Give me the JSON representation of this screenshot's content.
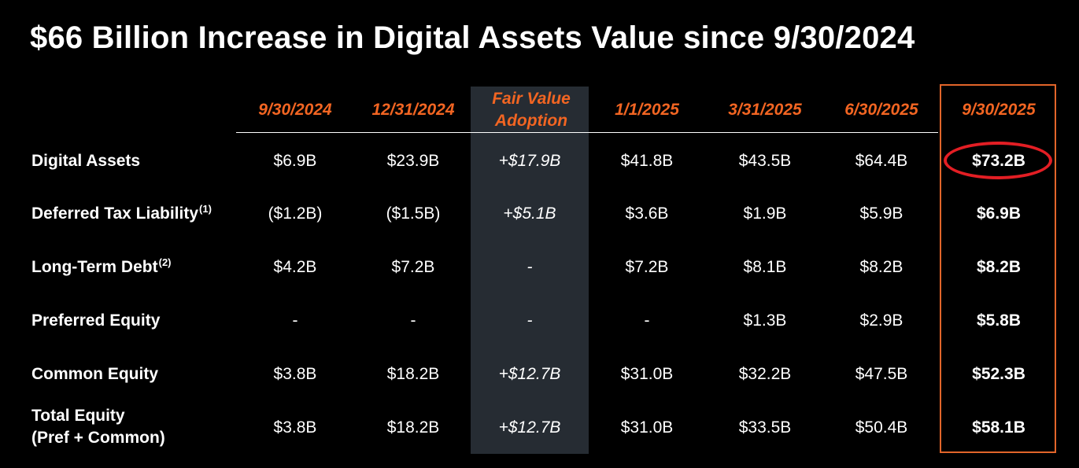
{
  "title": "$66 Billion Increase in Digital Assets Value since 9/30/2024",
  "accent_color": "#f26522",
  "highlight_color": "#e31e24",
  "columns": [
    "9/30/2024",
    "12/31/2024",
    "Fair Value Adoption",
    "1/1/2025",
    "3/31/2025",
    "6/30/2025",
    "9/30/2025"
  ],
  "rows": [
    {
      "label": "Digital Assets",
      "sup": "",
      "cells": [
        "$6.9B",
        "$23.9B",
        "+$17.9B",
        "$41.8B",
        "$43.5B",
        "$64.4B",
        "$73.2B"
      ]
    },
    {
      "label": "Deferred Tax Liability",
      "sup": "(1)",
      "cells": [
        "($1.2B)",
        "($1.5B)",
        "+$5.1B",
        "$3.6B",
        "$1.9B",
        "$5.9B",
        "$6.9B"
      ]
    },
    {
      "label": "Long-Term Debt",
      "sup": "(2)",
      "cells": [
        "$4.2B",
        "$7.2B",
        "-",
        "$7.2B",
        "$8.1B",
        "$8.2B",
        "$8.2B"
      ]
    },
    {
      "label": "Preferred Equity",
      "sup": "",
      "cells": [
        "-",
        "-",
        "-",
        "-",
        "$1.3B",
        "$2.9B",
        "$5.8B"
      ]
    },
    {
      "label": "Common Equity",
      "sup": "",
      "cells": [
        "$3.8B",
        "$18.2B",
        "+$12.7B",
        "$31.0B",
        "$32.2B",
        "$47.5B",
        "$52.3B"
      ]
    },
    {
      "label_line1": "Total Equity",
      "label_line2": "(Pref + Common)",
      "cells": [
        "$3.8B",
        "$18.2B",
        "+$12.7B",
        "$31.0B",
        "$33.5B",
        "$50.4B",
        "$58.1B"
      ]
    }
  ]
}
